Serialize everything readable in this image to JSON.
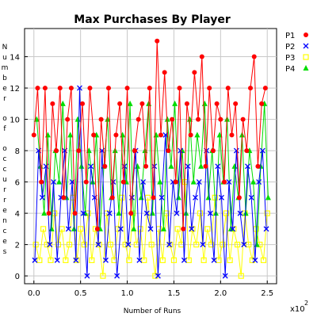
{
  "chart_data": {
    "type": "line",
    "title": "Max Purchases By Player",
    "xlabel": "Number of Runs",
    "ylabel": "Number of occurrences",
    "x_multiplier_label": "x10",
    "x_multiplier_exp": "2",
    "xlim": [
      -0.1,
      2.6
    ],
    "ylim": [
      -0.5,
      15.8
    ],
    "x_ticks": [
      "0.0",
      "0.5",
      "1.0",
      "1.5",
      "2.0",
      "2.5"
    ],
    "y_ticks": [
      "0",
      "2",
      "4",
      "6",
      "8",
      "10",
      "12",
      "14"
    ],
    "grid": true,
    "legend_position": "right",
    "series": [
      {
        "name": "P1",
        "color": "#ff0000",
        "marker": "circle",
        "x": [
          0.0,
          0.04,
          0.08,
          0.12,
          0.16,
          0.2,
          0.24,
          0.28,
          0.32,
          0.36,
          0.4,
          0.44,
          0.48,
          0.52,
          0.56,
          0.6,
          0.64,
          0.68,
          0.72,
          0.76,
          0.8,
          0.84,
          0.88,
          0.92,
          0.96,
          1.0,
          1.04,
          1.08,
          1.12,
          1.16,
          1.2,
          1.24,
          1.28,
          1.32,
          1.36,
          1.4,
          1.44,
          1.48,
          1.52,
          1.56,
          1.6,
          1.64,
          1.68,
          1.72,
          1.76,
          1.8,
          1.84,
          1.88,
          1.92,
          1.96,
          2.0,
          2.04,
          2.08,
          2.12,
          2.16,
          2.2,
          2.24,
          2.28,
          2.32,
          2.36,
          2.4,
          2.44,
          2.48
        ],
        "y": [
          9,
          12,
          6,
          12,
          4,
          11,
          8,
          12,
          5,
          10,
          12,
          4,
          8,
          11,
          6,
          12,
          9,
          3,
          10,
          7,
          12,
          5,
          9,
          11,
          6,
          12,
          4,
          8,
          10,
          11,
          7,
          12,
          5,
          15,
          9,
          13,
          8,
          10,
          6,
          12,
          3,
          11,
          9,
          13,
          10,
          14,
          7,
          12,
          8,
          11,
          10,
          6,
          12,
          9,
          11,
          5,
          10,
          8,
          12,
          14,
          7,
          11,
          12
        ]
      },
      {
        "name": "P2",
        "color": "#0000ff",
        "marker": "x",
        "x": [
          0.01,
          0.05,
          0.09,
          0.13,
          0.17,
          0.21,
          0.25,
          0.29,
          0.33,
          0.37,
          0.41,
          0.45,
          0.49,
          0.53,
          0.57,
          0.61,
          0.65,
          0.69,
          0.73,
          0.77,
          0.81,
          0.85,
          0.89,
          0.93,
          0.97,
          1.01,
          1.05,
          1.09,
          1.13,
          1.17,
          1.21,
          1.25,
          1.29,
          1.33,
          1.37,
          1.41,
          1.45,
          1.49,
          1.53,
          1.57,
          1.61,
          1.65,
          1.69,
          1.73,
          1.77,
          1.81,
          1.85,
          1.89,
          1.93,
          1.97,
          2.01,
          2.05,
          2.09,
          2.13,
          2.17,
          2.21,
          2.25,
          2.29,
          2.33,
          2.37,
          2.41,
          2.45,
          2.49
        ],
        "y": [
          1,
          8,
          5,
          7,
          2,
          6,
          1,
          5,
          8,
          3,
          6,
          1,
          12,
          4,
          0,
          7,
          5,
          2,
          8,
          1,
          4,
          6,
          0,
          3,
          7,
          2,
          5,
          8,
          1,
          6,
          4,
          3,
          7,
          0,
          5,
          9,
          2,
          6,
          4,
          8,
          1,
          7,
          3,
          5,
          6,
          2,
          8,
          4,
          1,
          7,
          5,
          0,
          6,
          3,
          8,
          4,
          2,
          7,
          5,
          1,
          6,
          8,
          3
        ]
      },
      {
        "name": "P3",
        "color": "#ffff00",
        "marker": "square",
        "x": [
          0.02,
          0.06,
          0.1,
          0.14,
          0.18,
          0.22,
          0.26,
          0.3,
          0.34,
          0.38,
          0.42,
          0.46,
          0.5,
          0.54,
          0.58,
          0.62,
          0.66,
          0.7,
          0.74,
          0.78,
          0.82,
          0.86,
          0.9,
          0.94,
          0.98,
          1.02,
          1.06,
          1.1,
          1.14,
          1.18,
          1.22,
          1.26,
          1.3,
          1.34,
          1.38,
          1.42,
          1.46,
          1.5,
          1.54,
          1.58,
          1.62,
          1.66,
          1.7,
          1.74,
          1.78,
          1.82,
          1.86,
          1.9,
          1.94,
          1.98,
          2.02,
          2.06,
          2.1,
          2.14,
          2.18,
          2.22,
          2.26,
          2.3,
          2.34,
          2.38,
          2.42,
          2.46,
          2.5
        ],
        "y": [
          2,
          1,
          3,
          2,
          1,
          4,
          2,
          3,
          1,
          2,
          5,
          1,
          3,
          2,
          4,
          1,
          3,
          2,
          0,
          4,
          2,
          1,
          3,
          5,
          2,
          1,
          4,
          2,
          3,
          1,
          5,
          2,
          0,
          3,
          1,
          4,
          2,
          1,
          3,
          2,
          6,
          1,
          3,
          2,
          4,
          1,
          3,
          2,
          5,
          1,
          2,
          4,
          1,
          3,
          2,
          0,
          4,
          2,
          1,
          3,
          2,
          1,
          4
        ]
      },
      {
        "name": "P4",
        "color": "#00dd00",
        "marker": "triangle",
        "x": [
          0.03,
          0.07,
          0.11,
          0.15,
          0.19,
          0.23,
          0.27,
          0.31,
          0.35,
          0.39,
          0.43,
          0.47,
          0.51,
          0.55,
          0.59,
          0.63,
          0.67,
          0.71,
          0.75,
          0.79,
          0.83,
          0.87,
          0.91,
          0.95,
          0.99,
          1.03,
          1.07,
          1.11,
          1.15,
          1.19,
          1.23,
          1.27,
          1.31,
          1.35,
          1.39,
          1.43,
          1.47,
          1.51,
          1.55,
          1.59,
          1.63,
          1.67,
          1.71,
          1.75,
          1.79,
          1.83,
          1.87,
          1.91,
          1.95,
          1.99,
          2.03,
          2.07,
          2.11,
          2.15,
          2.19,
          2.23,
          2.27,
          2.31,
          2.35,
          2.39,
          2.43,
          2.47,
          2.51
        ],
        "y": [
          10,
          7,
          4,
          9,
          3,
          8,
          6,
          11,
          5,
          9,
          3,
          10,
          7,
          4,
          8,
          6,
          9,
          3,
          7,
          10,
          5,
          8,
          4,
          9,
          6,
          11,
          3,
          7,
          5,
          8,
          11,
          4,
          9,
          6,
          3,
          10,
          7,
          11,
          5,
          8,
          4,
          10,
          6,
          9,
          7,
          11,
          5,
          8,
          4,
          9,
          6,
          10,
          3,
          7,
          5,
          9,
          4,
          8,
          6,
          2,
          7,
          11,
          5
        ]
      }
    ]
  }
}
